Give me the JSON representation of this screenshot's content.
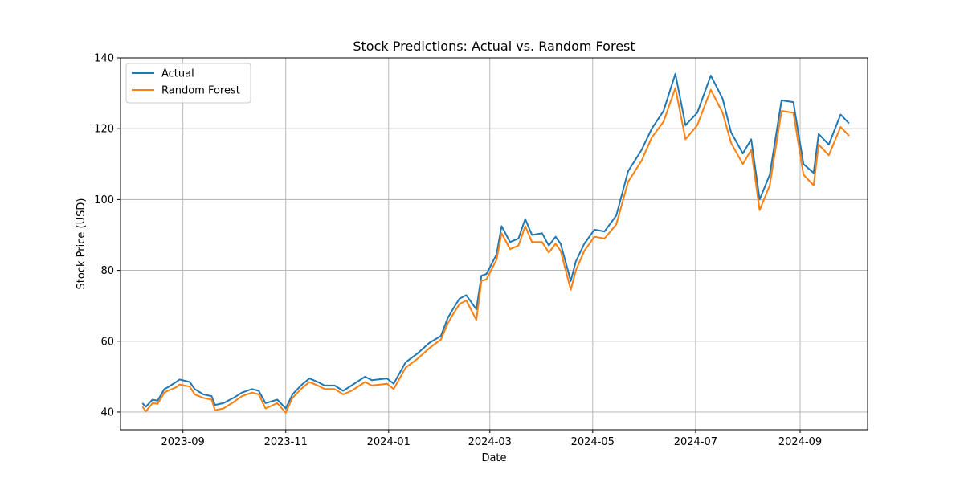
{
  "chart_data": {
    "type": "line",
    "title": "Stock Predictions: Actual vs. Random Forest",
    "xlabel": "Date",
    "ylabel": "Stock Price (USD)",
    "x_axis_type": "date",
    "xlim": [
      "2023-07-26",
      "2024-10-11"
    ],
    "ylim": [
      35,
      140
    ],
    "yticks": [
      40,
      60,
      80,
      100,
      120,
      140
    ],
    "xticks": [
      "2023-09-01",
      "2023-11-01",
      "2024-01-01",
      "2024-03-01",
      "2024-05-01",
      "2024-07-01",
      "2024-09-01"
    ],
    "xtick_labels": [
      "2023-09",
      "2023-11",
      "2024-01",
      "2024-03",
      "2024-05",
      "2024-07",
      "2024-09"
    ],
    "grid": true,
    "legend_position": "top-left",
    "series": [
      {
        "name": "Actual",
        "color": "#1f77b4",
        "points": [
          [
            "2023-08-08",
            42.5
          ],
          [
            "2023-08-10",
            41.5
          ],
          [
            "2023-08-14",
            43.5
          ],
          [
            "2023-08-17",
            43.2
          ],
          [
            "2023-08-21",
            46.5
          ],
          [
            "2023-08-23",
            47.0
          ],
          [
            "2023-08-28",
            48.5
          ],
          [
            "2023-08-30",
            49.2
          ],
          [
            "2023-09-05",
            48.5
          ],
          [
            "2023-09-08",
            46.5
          ],
          [
            "2023-09-13",
            45.0
          ],
          [
            "2023-09-18",
            44.5
          ],
          [
            "2023-09-20",
            42.0
          ],
          [
            "2023-09-25",
            42.5
          ],
          [
            "2023-10-01",
            44.0
          ],
          [
            "2023-10-06",
            45.5
          ],
          [
            "2023-10-12",
            46.5
          ],
          [
            "2023-10-16",
            46.0
          ],
          [
            "2023-10-20",
            42.5
          ],
          [
            "2023-10-27",
            43.5
          ],
          [
            "2023-11-01",
            41.0
          ],
          [
            "2023-11-05",
            45.0
          ],
          [
            "2023-11-10",
            47.5
          ],
          [
            "2023-11-15",
            49.5
          ],
          [
            "2023-11-20",
            48.5
          ],
          [
            "2023-11-24",
            47.5
          ],
          [
            "2023-11-30",
            47.5
          ],
          [
            "2023-12-05",
            46.0
          ],
          [
            "2023-12-10",
            47.5
          ],
          [
            "2023-12-18",
            50.0
          ],
          [
            "2023-12-22",
            49.0
          ],
          [
            "2023-12-31",
            49.5
          ],
          [
            "2024-01-04",
            48.0
          ],
          [
            "2024-01-11",
            54.0
          ],
          [
            "2024-01-18",
            56.5
          ],
          [
            "2024-01-25",
            59.5
          ],
          [
            "2024-02-01",
            61.5
          ],
          [
            "2024-02-05",
            66.5
          ],
          [
            "2024-02-08",
            69.0
          ],
          [
            "2024-02-12",
            72.0
          ],
          [
            "2024-02-16",
            73.0
          ],
          [
            "2024-02-22",
            69.0
          ],
          [
            "2024-02-25",
            78.5
          ],
          [
            "2024-02-28",
            79.0
          ],
          [
            "2024-03-05",
            84.5
          ],
          [
            "2024-03-08",
            92.5
          ],
          [
            "2024-03-13",
            88.0
          ],
          [
            "2024-03-18",
            89.0
          ],
          [
            "2024-03-22",
            94.5
          ],
          [
            "2024-03-26",
            90.0
          ],
          [
            "2024-04-01",
            90.5
          ],
          [
            "2024-04-05",
            87.0
          ],
          [
            "2024-04-09",
            89.5
          ],
          [
            "2024-04-12",
            87.5
          ],
          [
            "2024-04-18",
            77.0
          ],
          [
            "2024-04-21",
            82.5
          ],
          [
            "2024-04-26",
            87.5
          ],
          [
            "2024-05-02",
            91.5
          ],
          [
            "2024-05-08",
            91.0
          ],
          [
            "2024-05-15",
            95.5
          ],
          [
            "2024-05-22",
            108.0
          ],
          [
            "2024-05-30",
            114.0
          ],
          [
            "2024-06-05",
            120.0
          ],
          [
            "2024-06-12",
            125.0
          ],
          [
            "2024-06-19",
            135.5
          ],
          [
            "2024-06-25",
            121.0
          ],
          [
            "2024-07-02",
            124.5
          ],
          [
            "2024-07-10",
            135.0
          ],
          [
            "2024-07-17",
            128.5
          ],
          [
            "2024-07-22",
            119.0
          ],
          [
            "2024-07-29",
            113.0
          ],
          [
            "2024-08-03",
            117.0
          ],
          [
            "2024-08-08",
            100.0
          ],
          [
            "2024-08-14",
            107.0
          ],
          [
            "2024-08-21",
            128.0
          ],
          [
            "2024-08-28",
            127.5
          ],
          [
            "2024-09-03",
            110.0
          ],
          [
            "2024-09-09",
            107.5
          ],
          [
            "2024-09-12",
            118.5
          ],
          [
            "2024-09-18",
            115.5
          ],
          [
            "2024-09-25",
            124.0
          ],
          [
            "2024-09-30",
            121.5
          ]
        ]
      },
      {
        "name": "Random Forest",
        "color": "#ff7f0e",
        "points": [
          [
            "2023-08-08",
            41.5
          ],
          [
            "2023-08-10",
            40.2
          ],
          [
            "2023-08-14",
            42.5
          ],
          [
            "2023-08-17",
            42.3
          ],
          [
            "2023-08-21",
            45.5
          ],
          [
            "2023-08-23",
            46.0
          ],
          [
            "2023-08-28",
            47.0
          ],
          [
            "2023-08-30",
            47.8
          ],
          [
            "2023-09-05",
            47.2
          ],
          [
            "2023-09-08",
            45.0
          ],
          [
            "2023-09-13",
            44.0
          ],
          [
            "2023-09-18",
            43.5
          ],
          [
            "2023-09-20",
            40.5
          ],
          [
            "2023-09-25",
            41.0
          ],
          [
            "2023-10-01",
            42.8
          ],
          [
            "2023-10-06",
            44.5
          ],
          [
            "2023-10-12",
            45.5
          ],
          [
            "2023-10-16",
            45.0
          ],
          [
            "2023-10-20",
            41.0
          ],
          [
            "2023-10-27",
            42.5
          ],
          [
            "2023-11-01",
            39.8
          ],
          [
            "2023-11-05",
            44.0
          ],
          [
            "2023-11-10",
            46.5
          ],
          [
            "2023-11-15",
            48.5
          ],
          [
            "2023-11-20",
            47.5
          ],
          [
            "2023-11-24",
            46.5
          ],
          [
            "2023-11-30",
            46.5
          ],
          [
            "2023-12-05",
            45.0
          ],
          [
            "2023-12-10",
            46.0
          ],
          [
            "2023-12-18",
            48.5
          ],
          [
            "2023-12-22",
            47.5
          ],
          [
            "2023-12-31",
            48.0
          ],
          [
            "2024-01-04",
            46.5
          ],
          [
            "2024-01-11",
            52.5
          ],
          [
            "2024-01-18",
            55.0
          ],
          [
            "2024-01-25",
            58.0
          ],
          [
            "2024-02-01",
            60.5
          ],
          [
            "2024-02-05",
            65.0
          ],
          [
            "2024-02-08",
            67.5
          ],
          [
            "2024-02-12",
            70.5
          ],
          [
            "2024-02-16",
            71.5
          ],
          [
            "2024-02-22",
            66.0
          ],
          [
            "2024-02-25",
            77.0
          ],
          [
            "2024-02-28",
            77.5
          ],
          [
            "2024-03-05",
            83.0
          ],
          [
            "2024-03-08",
            90.5
          ],
          [
            "2024-03-13",
            86.0
          ],
          [
            "2024-03-18",
            87.0
          ],
          [
            "2024-03-22",
            92.5
          ],
          [
            "2024-03-26",
            88.0
          ],
          [
            "2024-04-01",
            88.0
          ],
          [
            "2024-04-05",
            85.0
          ],
          [
            "2024-04-09",
            87.5
          ],
          [
            "2024-04-12",
            85.5
          ],
          [
            "2024-04-18",
            74.5
          ],
          [
            "2024-04-21",
            80.0
          ],
          [
            "2024-04-26",
            85.5
          ],
          [
            "2024-05-02",
            89.5
          ],
          [
            "2024-05-08",
            89.0
          ],
          [
            "2024-05-15",
            93.0
          ],
          [
            "2024-05-22",
            105.0
          ],
          [
            "2024-05-30",
            111.0
          ],
          [
            "2024-06-05",
            117.5
          ],
          [
            "2024-06-12",
            122.0
          ],
          [
            "2024-06-19",
            131.5
          ],
          [
            "2024-06-25",
            117.0
          ],
          [
            "2024-07-02",
            121.0
          ],
          [
            "2024-07-10",
            131.0
          ],
          [
            "2024-07-17",
            124.5
          ],
          [
            "2024-07-22",
            116.0
          ],
          [
            "2024-07-29",
            110.0
          ],
          [
            "2024-08-03",
            114.0
          ],
          [
            "2024-08-08",
            97.0
          ],
          [
            "2024-08-14",
            104.0
          ],
          [
            "2024-08-21",
            125.0
          ],
          [
            "2024-08-28",
            124.5
          ],
          [
            "2024-09-03",
            107.0
          ],
          [
            "2024-09-09",
            104.0
          ],
          [
            "2024-09-12",
            115.5
          ],
          [
            "2024-09-18",
            112.5
          ],
          [
            "2024-09-25",
            120.5
          ],
          [
            "2024-09-30",
            118.0
          ]
        ]
      }
    ]
  }
}
